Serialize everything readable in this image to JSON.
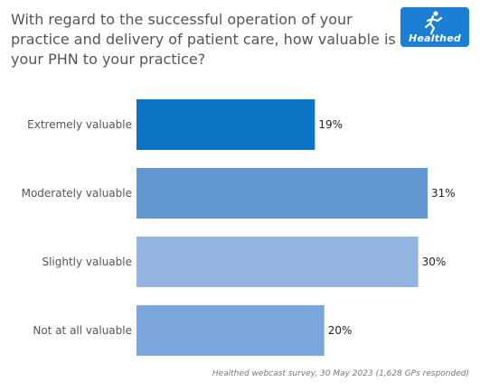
{
  "header": {
    "title": "With regard to the successful operation of your practice and delivery of patient care, how valuable is your PHN to your practice?",
    "logo_text": "Healthed",
    "logo_icon": "runner-icon"
  },
  "footer": {
    "source": "Healthed webcast survey, 30 May 2023 (1,628 GPs responded)"
  },
  "chart_data": {
    "type": "bar",
    "orientation": "horizontal",
    "categories": [
      "Extremely valuable",
      "Moderately valuable",
      "Slightly valuable",
      "Not at all valuable"
    ],
    "values": [
      19,
      31,
      30,
      20
    ],
    "value_labels": [
      "19%",
      "31%",
      "30%",
      "20%"
    ],
    "colors": [
      "#0b74c4",
      "#6196d1",
      "#93b3e0",
      "#7ba6db"
    ],
    "xlim": [
      0,
      32
    ],
    "grid": false,
    "legend": "none",
    "title": "",
    "xlabel": "",
    "ylabel": ""
  }
}
